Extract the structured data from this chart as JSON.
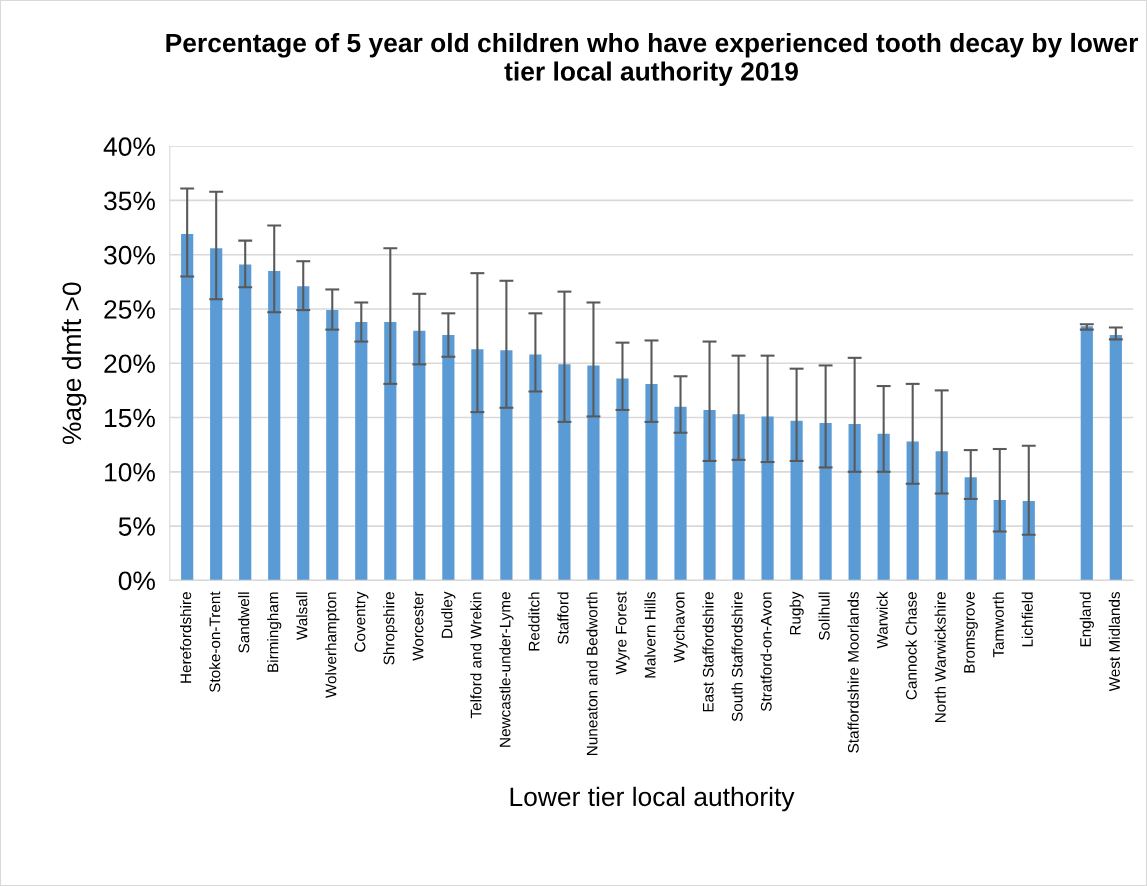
{
  "chart_data": {
    "type": "bar",
    "title": "Percentage of 5 year old children who have experienced tooth decay by lower tier local authority 2019",
    "xlabel": "Lower tier local authority",
    "ylabel": "%age dmft >0",
    "categories": [
      "Herefordshire",
      "Stoke-on-Trent",
      "Sandwell",
      "Birmingham",
      "Walsall",
      "Wolverhampton",
      "Coventry",
      "Shropshire",
      "Worcester",
      "Dudley",
      "Telford and Wrekin",
      "Newcastle-under-Lyme",
      "Redditch",
      "Stafford",
      "Nuneaton and Bedworth",
      "Wyre Forest",
      "Malvern Hills",
      "Wychavon",
      "East Staffordshire",
      "South Staffordshire",
      "Stratford-on-Avon",
      "Rugby",
      "Solihull",
      "Staffordshire Moorlands",
      "Warwick",
      "Cannock Chase",
      "North Warwickshire",
      "Bromsgrove",
      "Tamworth",
      "Lichfield",
      null,
      "England",
      "West Midlands"
    ],
    "values": [
      31.9,
      30.6,
      29.1,
      28.5,
      27.1,
      24.9,
      23.8,
      23.8,
      23.0,
      22.6,
      21.3,
      21.2,
      20.8,
      19.9,
      19.8,
      18.6,
      18.1,
      16.0,
      15.7,
      15.3,
      15.1,
      14.7,
      14.5,
      14.4,
      13.5,
      12.8,
      11.9,
      9.5,
      7.4,
      7.3,
      null,
      23.4,
      22.6
    ],
    "errors": [
      [
        28.0,
        36.1
      ],
      [
        25.9,
        35.8
      ],
      [
        27.0,
        31.3
      ],
      [
        24.7,
        32.7
      ],
      [
        24.9,
        29.4
      ],
      [
        23.1,
        26.8
      ],
      [
        22.0,
        25.6
      ],
      [
        18.1,
        30.6
      ],
      [
        19.9,
        26.4
      ],
      [
        20.6,
        24.6
      ],
      [
        15.5,
        28.3
      ],
      [
        15.9,
        27.6
      ],
      [
        17.4,
        24.6
      ],
      [
        14.6,
        26.6
      ],
      [
        15.1,
        25.6
      ],
      [
        15.7,
        21.9
      ],
      [
        14.6,
        22.1
      ],
      [
        13.6,
        18.8
      ],
      [
        11.0,
        22.0
      ],
      [
        11.1,
        20.7
      ],
      [
        10.9,
        20.7
      ],
      [
        11.0,
        19.5
      ],
      [
        10.4,
        19.8
      ],
      [
        10.0,
        20.5
      ],
      [
        10.0,
        17.9
      ],
      [
        8.9,
        18.1
      ],
      [
        8.0,
        17.5
      ],
      [
        7.5,
        12.0
      ],
      [
        4.5,
        12.1
      ],
      [
        4.2,
        12.4
      ],
      null,
      [
        23.1,
        23.6
      ],
      [
        22.2,
        23.3
      ]
    ],
    "color": "#5b9bd5",
    "ylim": [
      0,
      40
    ],
    "yticks": [
      {
        "value": 0,
        "label": "0%"
      },
      {
        "value": 5,
        "label": "5%"
      },
      {
        "value": 10,
        "label": "10%"
      },
      {
        "value": 15,
        "label": "15%"
      },
      {
        "value": 20,
        "label": "20%"
      },
      {
        "value": 25,
        "label": "25%"
      },
      {
        "value": 30,
        "label": "30%"
      },
      {
        "value": 35,
        "label": "35%"
      },
      {
        "value": 40,
        "label": "40%"
      }
    ],
    "grid": "y"
  }
}
